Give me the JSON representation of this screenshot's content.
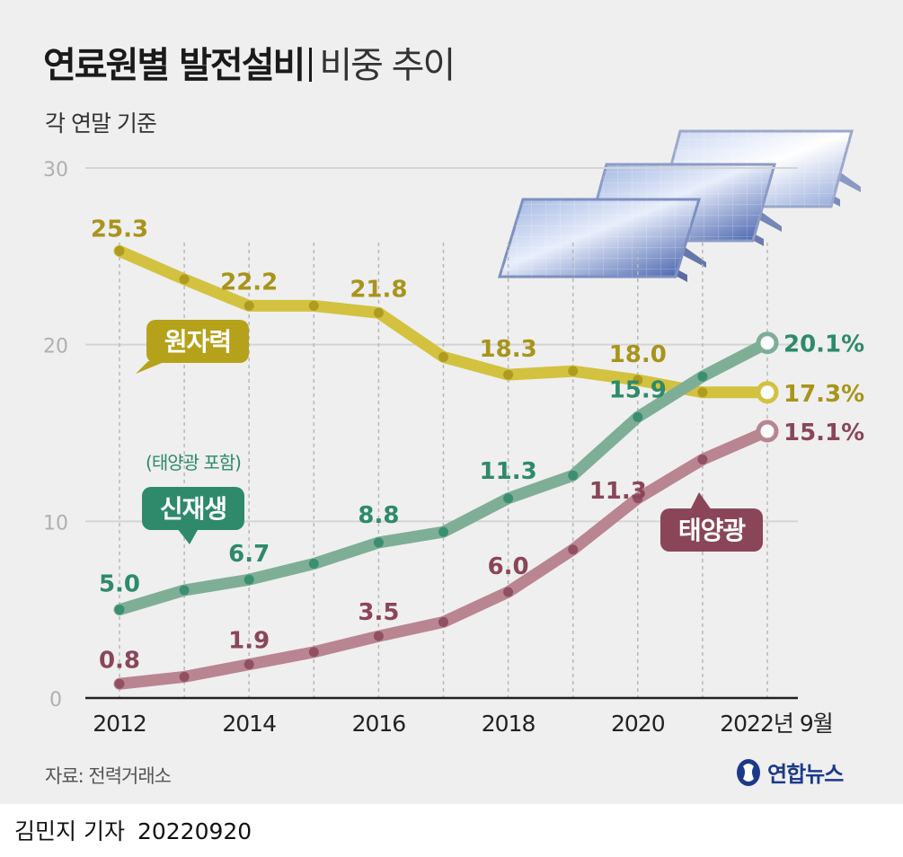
{
  "header": {
    "title_bold": "연료원별 발전설비",
    "title_light": "비중 추이",
    "subtitle": "각 연말 기준"
  },
  "footer": {
    "source": "자료: 전력거래소",
    "logo_text": "연합뉴스",
    "author": "김민지 기자",
    "date": "20220920"
  },
  "chart_data": {
    "type": "line",
    "title": "연료원별 발전설비 비중 추이",
    "subtitle": "각 연말 기준",
    "x_tick_labels": [
      "2012",
      "2014",
      "2016",
      "2018",
      "2020",
      "2022년 9월"
    ],
    "x": [
      2012,
      2013,
      2014,
      2015,
      2016,
      2017,
      2018,
      2019,
      2020,
      2021,
      2022
    ],
    "y_ticks": [
      0,
      10,
      20,
      30
    ],
    "ylim": [
      0,
      30
    ],
    "grid": true,
    "series": [
      {
        "name": "원자력",
        "color": "#d2c23f",
        "label_color": "#a8941a",
        "tag_color": "#b5a21a",
        "values": [
          25.3,
          23.7,
          22.2,
          22.2,
          21.8,
          19.3,
          18.3,
          18.5,
          18.0,
          17.3,
          17.3
        ],
        "point_labels": [
          {
            "index": 0,
            "text": "25.3"
          },
          {
            "index": 2,
            "text": "22.2"
          },
          {
            "index": 4,
            "text": "21.8"
          },
          {
            "index": 6,
            "text": "18.3"
          },
          {
            "index": 8,
            "text": "18.0"
          },
          {
            "index": 10,
            "text": "17.3%"
          }
        ]
      },
      {
        "name": "신재생",
        "note": "(태양광 포함)",
        "color": "#7fae97",
        "label_color": "#2e8a6a",
        "tag_color": "#2e8a6a",
        "values": [
          5.0,
          6.1,
          6.7,
          7.6,
          8.8,
          9.4,
          11.3,
          12.6,
          15.9,
          18.2,
          20.1
        ],
        "point_labels": [
          {
            "index": 0,
            "text": "5.0"
          },
          {
            "index": 2,
            "text": "6.7"
          },
          {
            "index": 4,
            "text": "8.8"
          },
          {
            "index": 6,
            "text": "11.3"
          },
          {
            "index": 8,
            "text": "15.9"
          },
          {
            "index": 10,
            "text": "20.1%"
          }
        ]
      },
      {
        "name": "태양광",
        "color": "#b98591",
        "label_color": "#8a4658",
        "tag_color": "#8a4658",
        "values": [
          0.8,
          1.2,
          1.9,
          2.6,
          3.5,
          4.3,
          6.0,
          8.4,
          11.3,
          13.5,
          15.1
        ],
        "point_labels": [
          {
            "index": 0,
            "text": "0.8"
          },
          {
            "index": 2,
            "text": "1.9"
          },
          {
            "index": 4,
            "text": "3.5"
          },
          {
            "index": 6,
            "text": "6.0"
          },
          {
            "index": 8,
            "text": "11.3"
          },
          {
            "index": 10,
            "text": "15.1%"
          }
        ]
      }
    ]
  }
}
